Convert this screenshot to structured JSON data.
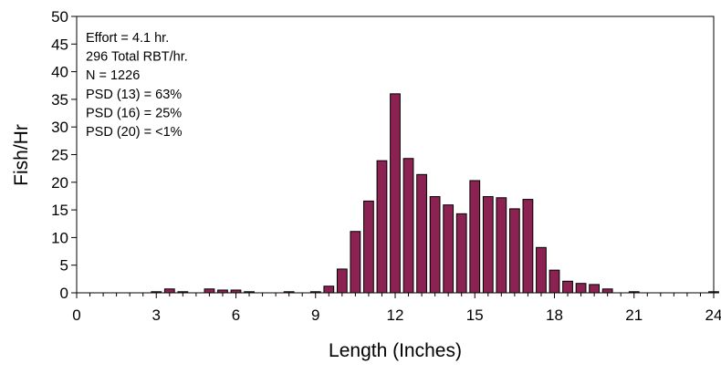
{
  "chart_data": {
    "type": "bar",
    "title": "",
    "xlabel": "Length (Inches)",
    "ylabel": "Fish/Hr",
    "xlim": [
      0,
      24
    ],
    "ylim": [
      0,
      50
    ],
    "xticks": [
      0,
      3,
      6,
      9,
      12,
      15,
      18,
      21,
      24
    ],
    "yticks": [
      0,
      5,
      10,
      15,
      20,
      25,
      30,
      35,
      40,
      45,
      50
    ],
    "grid": false,
    "legend": "none",
    "bar_color": "#8B2252",
    "bar_edge_color": "#000000",
    "bin_width": 0.5,
    "x": [
      3.0,
      3.5,
      4.0,
      5.0,
      5.5,
      6.0,
      6.5,
      8.0,
      9.0,
      9.5,
      10.0,
      10.5,
      11.0,
      11.5,
      12.0,
      12.5,
      13.0,
      13.5,
      14.0,
      14.5,
      15.0,
      15.5,
      16.0,
      16.5,
      17.0,
      17.5,
      18.0,
      18.5,
      19.0,
      19.5,
      20.0,
      21.0,
      24.0
    ],
    "values": [
      0.2,
      0.7,
      0.2,
      0.7,
      0.5,
      0.5,
      0.2,
      0.2,
      0.2,
      1.2,
      4.3,
      11.1,
      16.6,
      23.9,
      36.0,
      24.3,
      21.4,
      17.4,
      15.9,
      14.3,
      20.3,
      17.4,
      17.2,
      15.2,
      16.9,
      8.2,
      4.1,
      2.1,
      1.7,
      1.5,
      0.7,
      0.2,
      0.2
    ],
    "annotations": [
      "Effort =  4.1 hr.",
      "296 Total RBT/hr.",
      "N = 1226",
      "PSD (13) = 63%",
      "PSD (16) = 25%",
      "PSD (20) = <1%"
    ]
  }
}
